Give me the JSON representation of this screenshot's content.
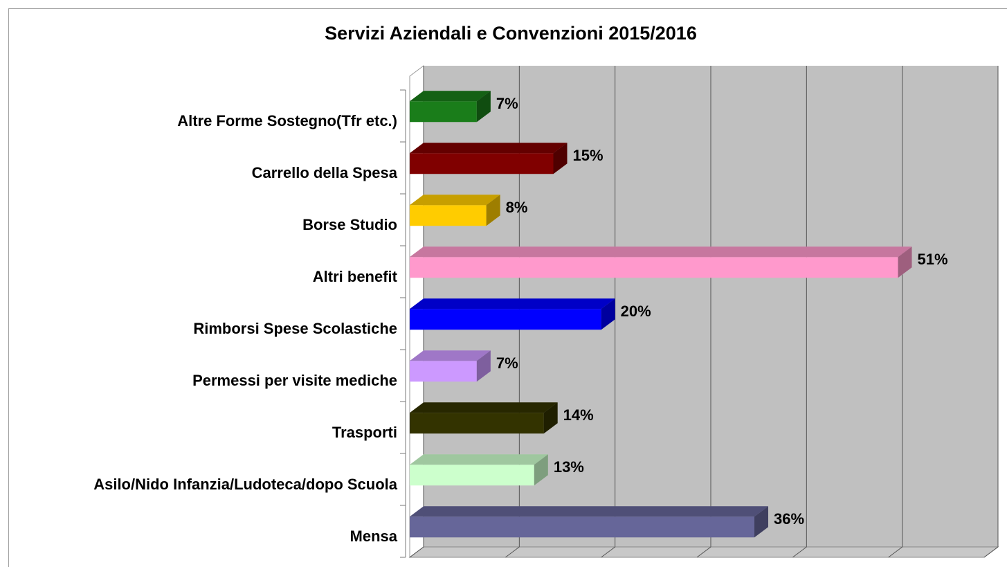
{
  "chart_data": {
    "type": "bar3d-horizontal",
    "title": "Servizi Aziendali e Convenzioni 2015/2016",
    "categories": [
      "Altre Forme Sostegno(Tfr etc.)",
      "Carrello della Spesa",
      "Borse Studio",
      "Altri benefit",
      "Rimborsi Spese Scolastiche",
      "Permessi per visite mediche",
      "Trasporti",
      "Asilo/Nido Infanzia/Ludoteca/dopo Scuola",
      "Mensa"
    ],
    "values": [
      7,
      15,
      8,
      51,
      20,
      7,
      14,
      13,
      36
    ],
    "value_labels": [
      "7%",
      "15%",
      "8%",
      "51%",
      "20%",
      "7%",
      "14%",
      "13%",
      "36%"
    ],
    "colors": [
      "#1a7d1a",
      "#800000",
      "#ffcc00",
      "#ff99cc",
      "#0000ff",
      "#cc99ff",
      "#333300",
      "#ccffcc",
      "#666699"
    ],
    "xlim": [
      0,
      60
    ],
    "xticks": [
      0,
      10,
      20,
      30,
      40,
      50,
      60
    ],
    "grid": true
  }
}
